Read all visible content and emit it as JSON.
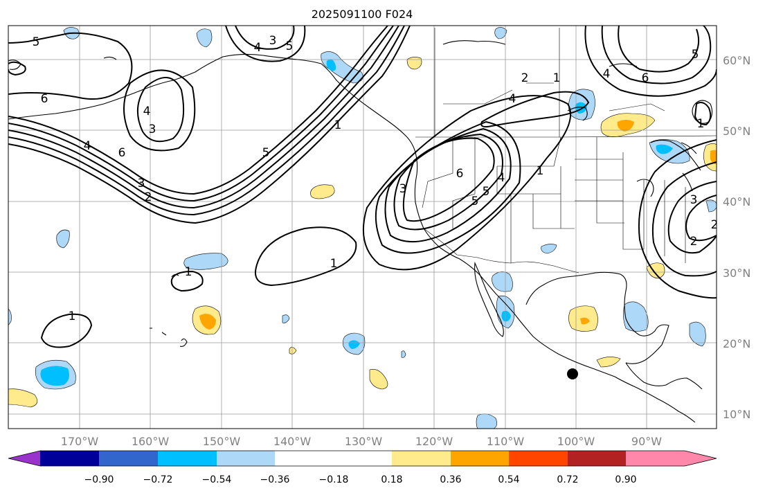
{
  "title": "2025091100 F024",
  "lat_labels": [
    "10°N",
    "20°N",
    "30°N",
    "40°N",
    "50°N",
    "60°N"
  ],
  "lon_labels": [
    "170°W",
    "160°W",
    "150°W",
    "140°W",
    "130°W",
    "120°W",
    "110°W",
    "100°W",
    "90°W"
  ],
  "colorbar": {
    "colors": [
      "#9933cc",
      "#000099",
      "#3366cc",
      "#00bfff",
      "#add8f7",
      "#ffffff",
      "#ffea8c",
      "#ffa500",
      "#ff4500",
      "#b22222",
      "#ff88aa"
    ],
    "tick_labels": [
      "−0.90",
      "−0.72",
      "−0.54",
      "−0.36",
      "−0.18",
      "0.18",
      "0.36",
      "0.54",
      "0.72",
      "0.90"
    ]
  },
  "contour_labels": [
    "5",
    "3",
    "4",
    "5",
    "6",
    "4",
    "3",
    "4",
    "2",
    "1",
    "5",
    "6",
    "3",
    "2",
    "1",
    "1",
    "1",
    "2",
    "1",
    "4",
    "6",
    "5",
    "4",
    "3",
    "6",
    "5",
    "4",
    "1",
    "5",
    "3",
    "2",
    "1"
  ],
  "marker": "storm-position"
}
